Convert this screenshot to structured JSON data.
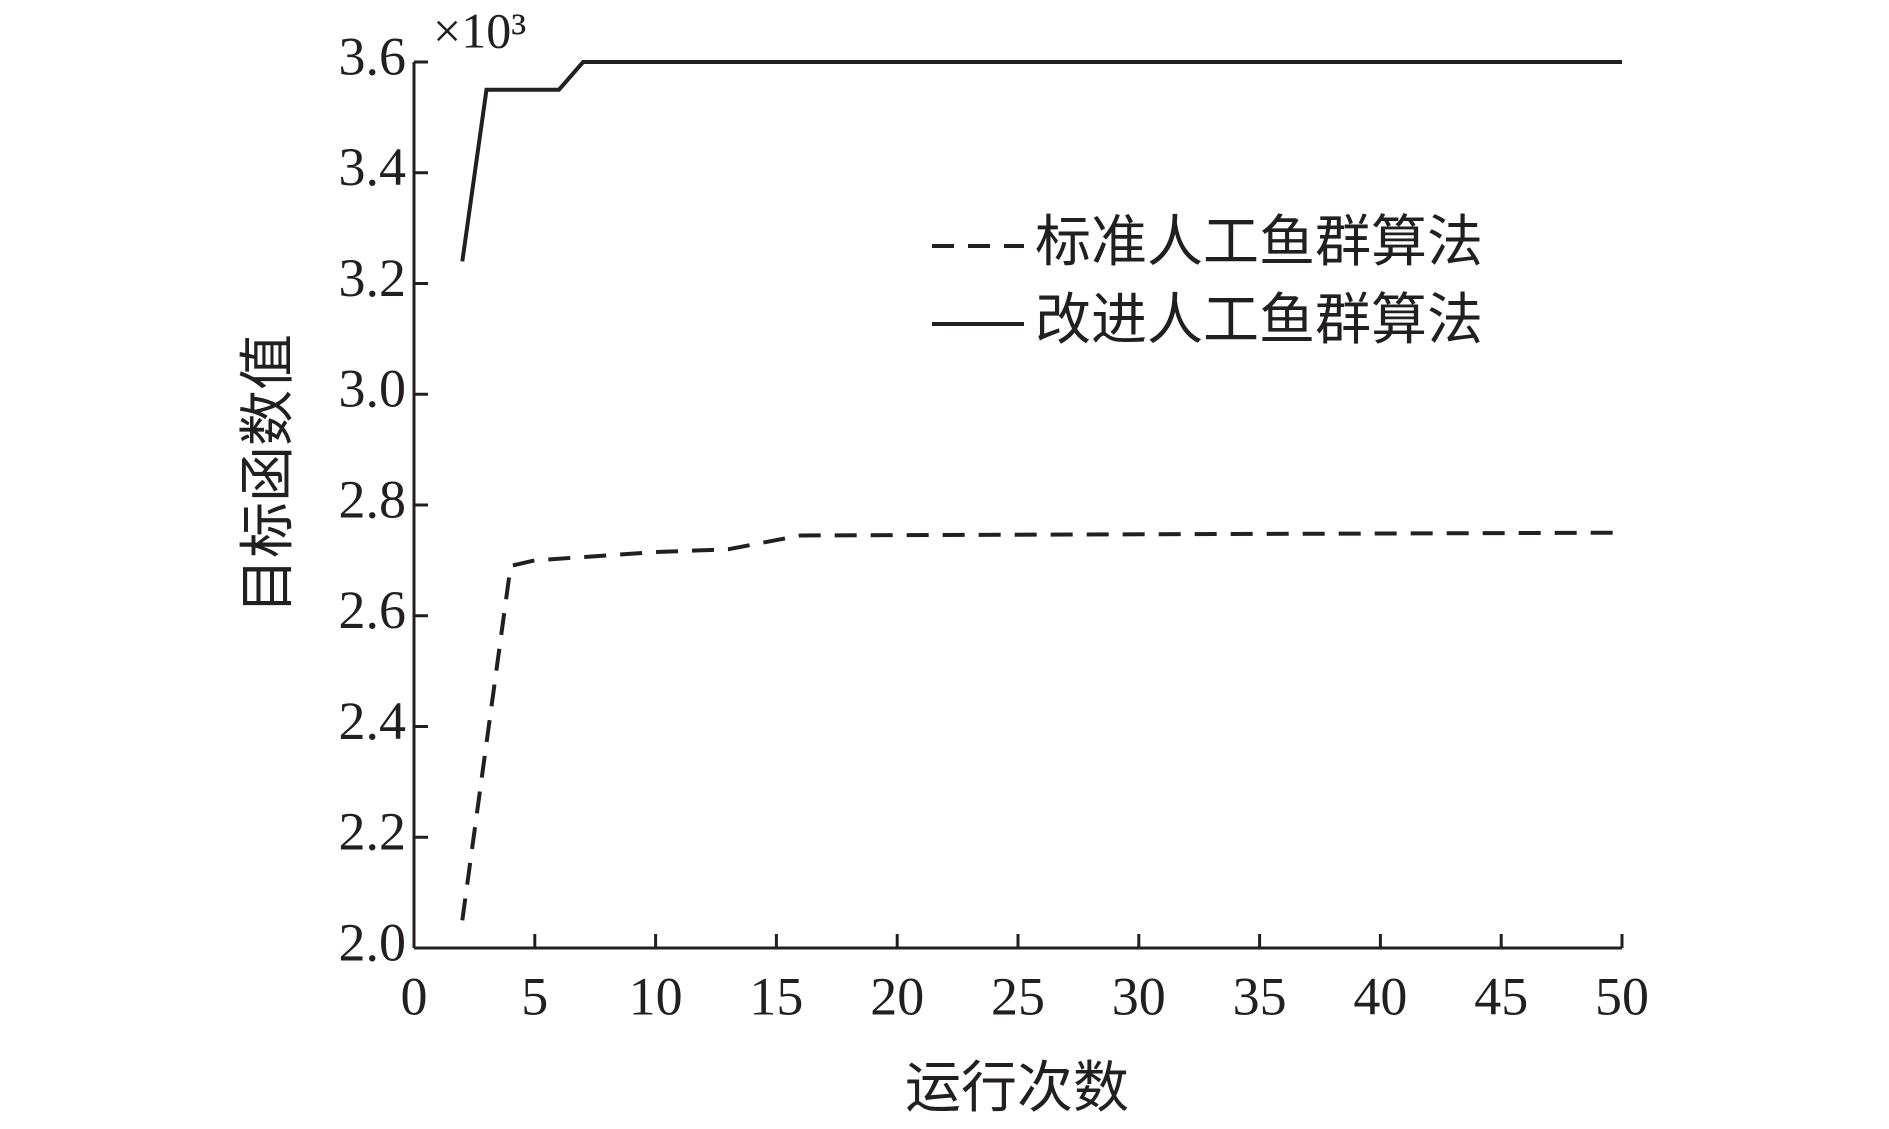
{
  "chart_data": {
    "type": "line",
    "xlabel": "运行次数",
    "ylabel": "目标函数值",
    "y_multiplier": "×10³",
    "xlim": [
      0,
      50
    ],
    "xticks": [
      0,
      5,
      10,
      15,
      20,
      25,
      30,
      35,
      40,
      45,
      50
    ],
    "ylim": [
      2,
      3.6
    ],
    "yticks": [
      {
        "value": 2,
        "label": "2.0"
      },
      {
        "value": 2.2,
        "label": "2.2"
      },
      {
        "value": 2.4,
        "label": "2.4"
      },
      {
        "value": 2.6,
        "label": "2.6"
      },
      {
        "value": 2.8,
        "label": "2.8"
      },
      {
        "value": 3,
        "label": "3.0"
      },
      {
        "value": 3.2,
        "label": "3.2"
      },
      {
        "value": 3.4,
        "label": "3.4"
      },
      {
        "value": 3.6,
        "label": "3.6"
      }
    ],
    "legend": "upper right",
    "grid": false,
    "series": [
      {
        "name": "标准人工鱼群算法",
        "color": "#231f20",
        "dash": "dashed",
        "x": [
          2,
          4,
          5,
          10,
          13,
          16,
          50
        ],
        "values": [
          2.05,
          2.69,
          2.7,
          2.715,
          2.72,
          2.745,
          2.75
        ]
      },
      {
        "name": "改进人工鱼群算法",
        "color": "#231f20",
        "dash": "solid",
        "x": [
          2,
          3,
          6,
          7,
          50
        ],
        "values": [
          3.24,
          3.55,
          3.55,
          3.6,
          3.6
        ]
      }
    ]
  }
}
